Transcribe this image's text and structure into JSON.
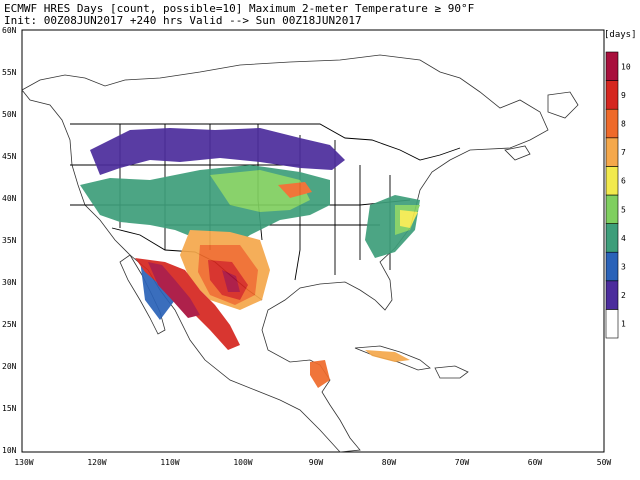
{
  "header": {
    "line1": "ECMWF HRES Days [count, possible=10] Maximum 2-meter Temperature ≥ 90°F",
    "line2": "Init: 00Z08JUN2017 +240 hrs Valid --> Sun 00Z18JUN2017"
  },
  "map": {
    "lat_labels": [
      "60N",
      "55N",
      "50N",
      "45N",
      "40N",
      "35N",
      "30N",
      "25N",
      "20N",
      "15N",
      "10N"
    ],
    "lon_labels": [
      "130W",
      "120W",
      "110W",
      "100W",
      "90W",
      "80W",
      "70W",
      "60W",
      "50W"
    ],
    "land_color": "#ffffff",
    "border_color": "#000000",
    "coast_color": "#333333"
  },
  "legend": {
    "unit": "days",
    "levels": [
      {
        "label": "1",
        "color": "#ffffff"
      },
      {
        "label": "2",
        "color": "#4b2c9c"
      },
      {
        "label": "3",
        "color": "#2a62b8"
      },
      {
        "label": "4",
        "color": "#3d9e7a"
      },
      {
        "label": "5",
        "color": "#7fcf5f"
      },
      {
        "label": "6",
        "color": "#f2ea4d"
      },
      {
        "label": "7",
        "color": "#f5a84b"
      },
      {
        "label": "8",
        "color": "#ef6a2a"
      },
      {
        "label": "9",
        "color": "#d5261f"
      },
      {
        "label": "10",
        "color": "#a80f3c"
      }
    ]
  }
}
